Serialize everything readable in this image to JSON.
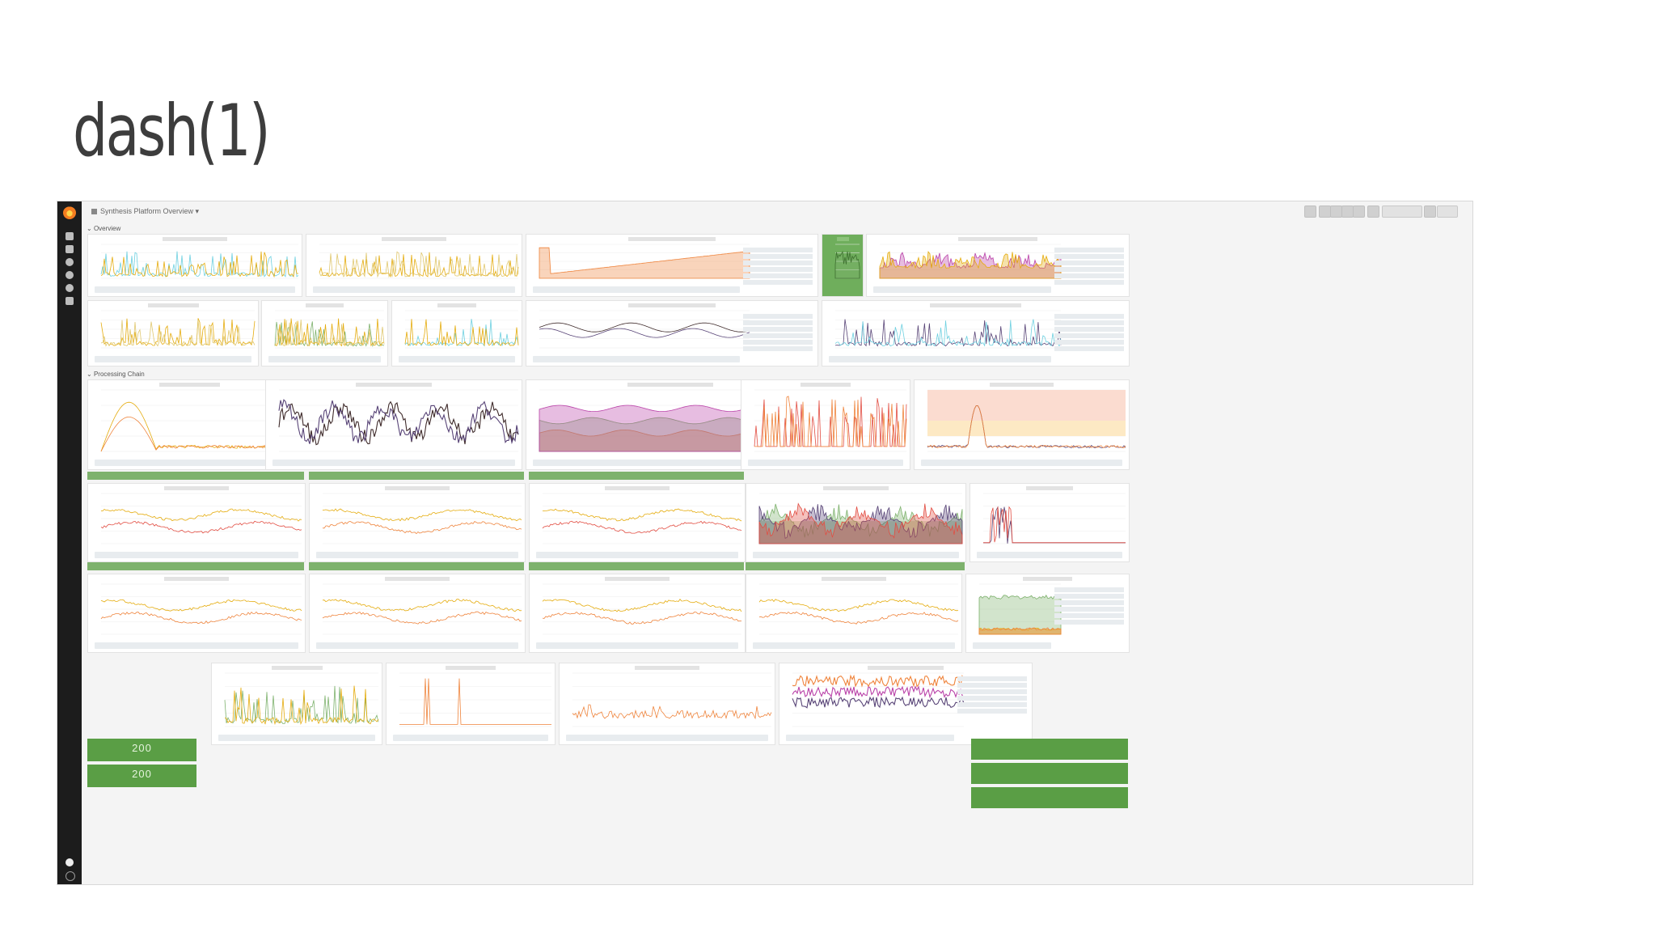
{
  "slide": {
    "title": "dash(1)"
  },
  "dashboard": {
    "title": "Synthesis Platform Overview",
    "rows": [
      {
        "label": "Overview"
      },
      {
        "label": "Processing Chain"
      }
    ],
    "stats": [
      {
        "label": "",
        "value": "200"
      },
      {
        "label": "",
        "value": "200"
      }
    ]
  },
  "colors": {
    "sidebar": "#1c1c1c",
    "ok_green": "#7eb26d",
    "stat_green": "#5a9e45",
    "yellow": "#e5ac0e",
    "orange": "#ef843c",
    "pink": "#e24d42",
    "magenta": "#ba43a9"
  }
}
